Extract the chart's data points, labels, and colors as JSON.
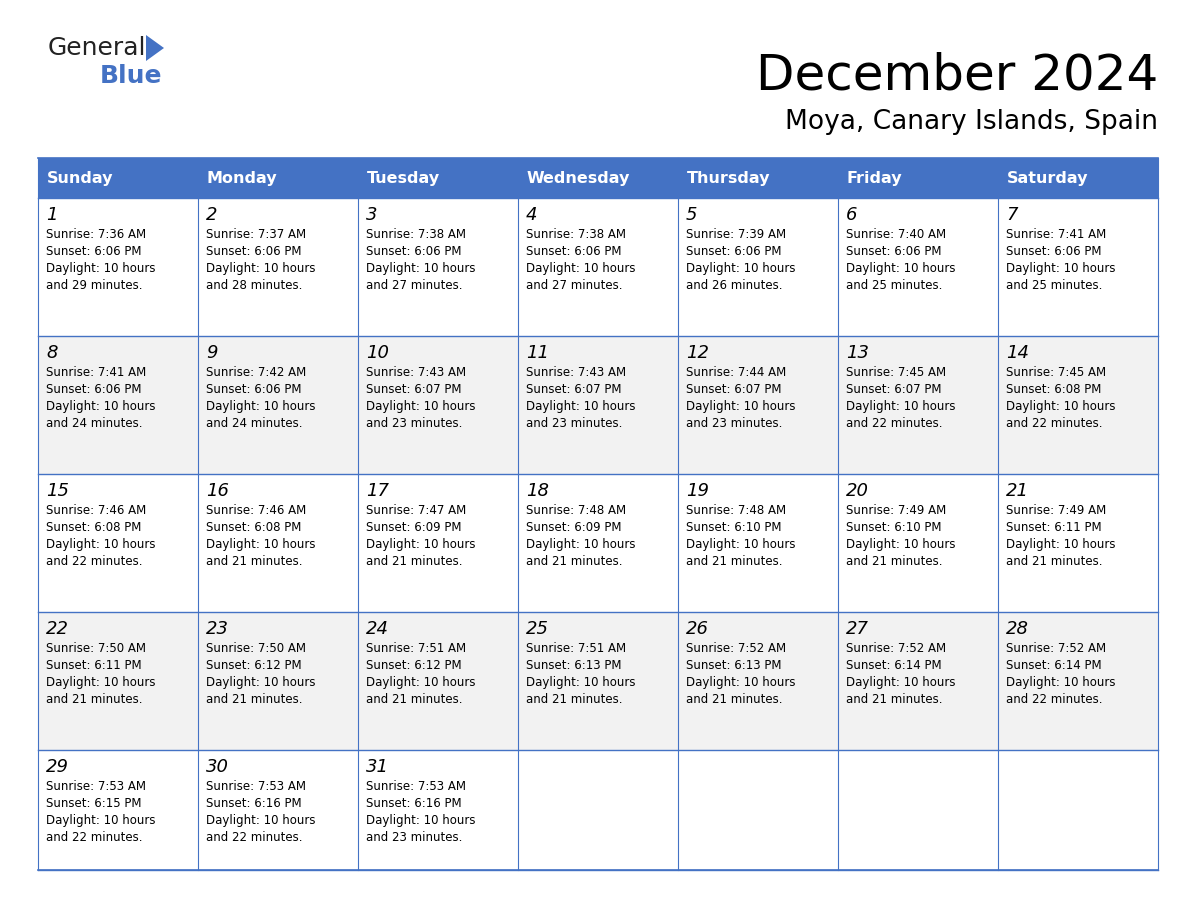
{
  "title": "December 2024",
  "subtitle": "Moya, Canary Islands, Spain",
  "header_color": "#4472C4",
  "header_text_color": "#FFFFFF",
  "day_names": [
    "Sunday",
    "Monday",
    "Tuesday",
    "Wednesday",
    "Thursday",
    "Friday",
    "Saturday"
  ],
  "alt_row_color": "#F2F2F2",
  "white_color": "#FFFFFF",
  "border_color": "#4472C4",
  "text_color": "#000000",
  "days": [
    {
      "day": 1,
      "col": 0,
      "row": 0,
      "sunrise": "7:36 AM",
      "sunset": "6:06 PM",
      "daylight": "10 hours and 29 minutes"
    },
    {
      "day": 2,
      "col": 1,
      "row": 0,
      "sunrise": "7:37 AM",
      "sunset": "6:06 PM",
      "daylight": "10 hours and 28 minutes"
    },
    {
      "day": 3,
      "col": 2,
      "row": 0,
      "sunrise": "7:38 AM",
      "sunset": "6:06 PM",
      "daylight": "10 hours and 27 minutes"
    },
    {
      "day": 4,
      "col": 3,
      "row": 0,
      "sunrise": "7:38 AM",
      "sunset": "6:06 PM",
      "daylight": "10 hours and 27 minutes"
    },
    {
      "day": 5,
      "col": 4,
      "row": 0,
      "sunrise": "7:39 AM",
      "sunset": "6:06 PM",
      "daylight": "10 hours and 26 minutes"
    },
    {
      "day": 6,
      "col": 5,
      "row": 0,
      "sunrise": "7:40 AM",
      "sunset": "6:06 PM",
      "daylight": "10 hours and 25 minutes"
    },
    {
      "day": 7,
      "col": 6,
      "row": 0,
      "sunrise": "7:41 AM",
      "sunset": "6:06 PM",
      "daylight": "10 hours and 25 minutes"
    },
    {
      "day": 8,
      "col": 0,
      "row": 1,
      "sunrise": "7:41 AM",
      "sunset": "6:06 PM",
      "daylight": "10 hours and 24 minutes"
    },
    {
      "day": 9,
      "col": 1,
      "row": 1,
      "sunrise": "7:42 AM",
      "sunset": "6:06 PM",
      "daylight": "10 hours and 24 minutes"
    },
    {
      "day": 10,
      "col": 2,
      "row": 1,
      "sunrise": "7:43 AM",
      "sunset": "6:07 PM",
      "daylight": "10 hours and 23 minutes"
    },
    {
      "day": 11,
      "col": 3,
      "row": 1,
      "sunrise": "7:43 AM",
      "sunset": "6:07 PM",
      "daylight": "10 hours and 23 minutes"
    },
    {
      "day": 12,
      "col": 4,
      "row": 1,
      "sunrise": "7:44 AM",
      "sunset": "6:07 PM",
      "daylight": "10 hours and 23 minutes"
    },
    {
      "day": 13,
      "col": 5,
      "row": 1,
      "sunrise": "7:45 AM",
      "sunset": "6:07 PM",
      "daylight": "10 hours and 22 minutes"
    },
    {
      "day": 14,
      "col": 6,
      "row": 1,
      "sunrise": "7:45 AM",
      "sunset": "6:08 PM",
      "daylight": "10 hours and 22 minutes"
    },
    {
      "day": 15,
      "col": 0,
      "row": 2,
      "sunrise": "7:46 AM",
      "sunset": "6:08 PM",
      "daylight": "10 hours and 22 minutes"
    },
    {
      "day": 16,
      "col": 1,
      "row": 2,
      "sunrise": "7:46 AM",
      "sunset": "6:08 PM",
      "daylight": "10 hours and 21 minutes"
    },
    {
      "day": 17,
      "col": 2,
      "row": 2,
      "sunrise": "7:47 AM",
      "sunset": "6:09 PM",
      "daylight": "10 hours and 21 minutes"
    },
    {
      "day": 18,
      "col": 3,
      "row": 2,
      "sunrise": "7:48 AM",
      "sunset": "6:09 PM",
      "daylight": "10 hours and 21 minutes"
    },
    {
      "day": 19,
      "col": 4,
      "row": 2,
      "sunrise": "7:48 AM",
      "sunset": "6:10 PM",
      "daylight": "10 hours and 21 minutes"
    },
    {
      "day": 20,
      "col": 5,
      "row": 2,
      "sunrise": "7:49 AM",
      "sunset": "6:10 PM",
      "daylight": "10 hours and 21 minutes"
    },
    {
      "day": 21,
      "col": 6,
      "row": 2,
      "sunrise": "7:49 AM",
      "sunset": "6:11 PM",
      "daylight": "10 hours and 21 minutes"
    },
    {
      "day": 22,
      "col": 0,
      "row": 3,
      "sunrise": "7:50 AM",
      "sunset": "6:11 PM",
      "daylight": "10 hours and 21 minutes"
    },
    {
      "day": 23,
      "col": 1,
      "row": 3,
      "sunrise": "7:50 AM",
      "sunset": "6:12 PM",
      "daylight": "10 hours and 21 minutes"
    },
    {
      "day": 24,
      "col": 2,
      "row": 3,
      "sunrise": "7:51 AM",
      "sunset": "6:12 PM",
      "daylight": "10 hours and 21 minutes"
    },
    {
      "day": 25,
      "col": 3,
      "row": 3,
      "sunrise": "7:51 AM",
      "sunset": "6:13 PM",
      "daylight": "10 hours and 21 minutes"
    },
    {
      "day": 26,
      "col": 4,
      "row": 3,
      "sunrise": "7:52 AM",
      "sunset": "6:13 PM",
      "daylight": "10 hours and 21 minutes"
    },
    {
      "day": 27,
      "col": 5,
      "row": 3,
      "sunrise": "7:52 AM",
      "sunset": "6:14 PM",
      "daylight": "10 hours and 21 minutes"
    },
    {
      "day": 28,
      "col": 6,
      "row": 3,
      "sunrise": "7:52 AM",
      "sunset": "6:14 PM",
      "daylight": "10 hours and 22 minutes"
    },
    {
      "day": 29,
      "col": 0,
      "row": 4,
      "sunrise": "7:53 AM",
      "sunset": "6:15 PM",
      "daylight": "10 hours and 22 minutes"
    },
    {
      "day": 30,
      "col": 1,
      "row": 4,
      "sunrise": "7:53 AM",
      "sunset": "6:16 PM",
      "daylight": "10 hours and 22 minutes"
    },
    {
      "day": 31,
      "col": 2,
      "row": 4,
      "sunrise": "7:53 AM",
      "sunset": "6:16 PM",
      "daylight": "10 hours and 23 minutes"
    }
  ],
  "logo_general_color": "#222222",
  "logo_blue_color": "#4472C4",
  "fig_width": 11.88,
  "fig_height": 9.18,
  "dpi": 100
}
